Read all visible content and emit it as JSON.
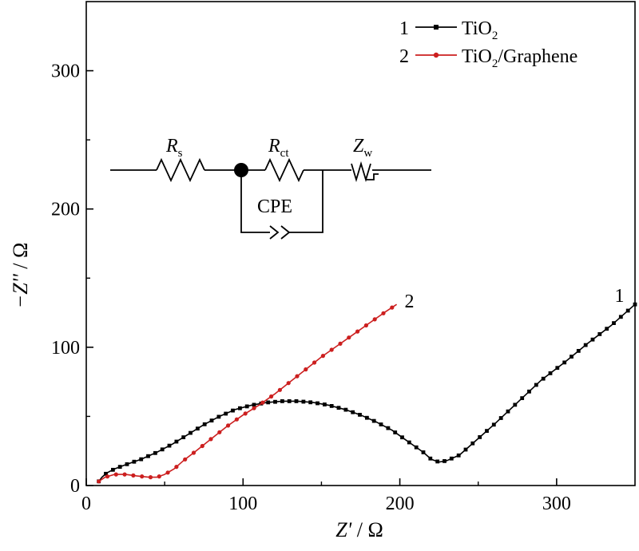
{
  "chart_data": {
    "type": "line",
    "xlabel_var": "Z'",
    "xlabel_unit": " / Ω",
    "ylabel_var": "−Z''",
    "ylabel_unit": " / Ω",
    "xlim": [
      0,
      350
    ],
    "ylim": [
      0,
      350
    ],
    "x_ticks": [
      0,
      100,
      200,
      300
    ],
    "y_ticks": [
      0,
      100,
      200,
      300
    ],
    "grid": false,
    "legend": {
      "position": "top-right",
      "entries": [
        {
          "number": "1",
          "base": "TiO",
          "sub": "2",
          "rest": "",
          "color": "#000000",
          "marker": "square"
        },
        {
          "number": "2",
          "base": "TiO",
          "sub": "2",
          "rest": "/Graphene",
          "color": "#cc1f1f",
          "marker": "circle"
        }
      ]
    },
    "series": [
      {
        "label": "1",
        "color": "#000000",
        "marker": "square",
        "points": [
          [
            8,
            3
          ],
          [
            10,
            6
          ],
          [
            13,
            9
          ],
          [
            18,
            12
          ],
          [
            25,
            15
          ],
          [
            35,
            19
          ],
          [
            45,
            24
          ],
          [
            55,
            30
          ],
          [
            65,
            37
          ],
          [
            75,
            44
          ],
          [
            85,
            50
          ],
          [
            95,
            55
          ],
          [
            105,
            58
          ],
          [
            115,
            60
          ],
          [
            125,
            61
          ],
          [
            135,
            61
          ],
          [
            145,
            60
          ],
          [
            155,
            58
          ],
          [
            165,
            55
          ],
          [
            175,
            51
          ],
          [
            185,
            46
          ],
          [
            195,
            40
          ],
          [
            205,
            32
          ],
          [
            215,
            24
          ],
          [
            220,
            19
          ],
          [
            225,
            17
          ],
          [
            230,
            18
          ],
          [
            238,
            22
          ],
          [
            248,
            32
          ],
          [
            260,
            44
          ],
          [
            275,
            60
          ],
          [
            290,
            76
          ],
          [
            305,
            89
          ],
          [
            320,
            103
          ],
          [
            335,
            116
          ],
          [
            350,
            131
          ]
        ]
      },
      {
        "label": "2",
        "color": "#cc1f1f",
        "marker": "circle",
        "points": [
          [
            8,
            3
          ],
          [
            12,
            6
          ],
          [
            18,
            8
          ],
          [
            25,
            8
          ],
          [
            32,
            7
          ],
          [
            40,
            6
          ],
          [
            45,
            6
          ],
          [
            50,
            8
          ],
          [
            56,
            12
          ],
          [
            62,
            18
          ],
          [
            70,
            25
          ],
          [
            80,
            34
          ],
          [
            90,
            43
          ],
          [
            100,
            51
          ],
          [
            110,
            58
          ],
          [
            120,
            66
          ],
          [
            130,
            75
          ],
          [
            140,
            84
          ],
          [
            150,
            93
          ],
          [
            160,
            101
          ],
          [
            170,
            109
          ],
          [
            180,
            117
          ],
          [
            190,
            125
          ],
          [
            198,
            131
          ]
        ]
      }
    ]
  },
  "circuit": {
    "rs_base": "R",
    "rs_sub": "s",
    "rct_base": "R",
    "rct_sub": "ct",
    "zw_base": "Z",
    "zw_sub": "w",
    "cpe_label": "CPE"
  }
}
